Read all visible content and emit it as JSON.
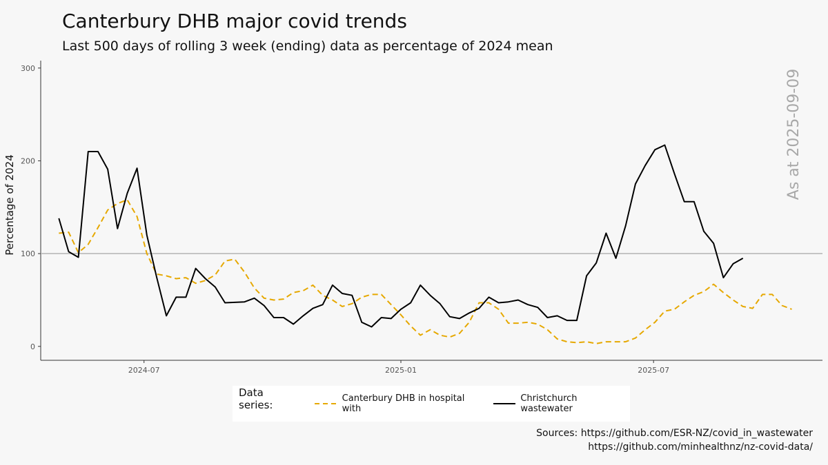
{
  "title": "Canterbury DHB major covid trends",
  "subtitle": "Last 500 days of rolling 3 week (ending) data as percentage of 2024 mean",
  "legend": {
    "title": "Data series:",
    "items": [
      "Canterbury DHB in hospital with",
      "Christchurch wastewater"
    ]
  },
  "sources": [
    "Sources: https://github.com/ESR-NZ/covid_in_wastewater",
    "https://github.com/minhealthnz/nz-covid-data/"
  ],
  "colors": {
    "hospital": "#e6a800",
    "wastewater": "#000000",
    "reference_line": "#b3b3b3",
    "annotation": "#a8a8a8"
  },
  "chart_data": {
    "type": "line",
    "ylabel": "Percentage of 2024",
    "xlabel": "",
    "ylim": [
      -15,
      308
    ],
    "xlim": [
      "2024-04-18",
      "2025-10-30"
    ],
    "yticks": [
      0,
      100,
      200,
      300
    ],
    "xticks": [
      "2024-07",
      "2025-01",
      "2025-07"
    ],
    "reference_line_y": 100,
    "annotation": "As at 2025-09-09",
    "grid": false,
    "legend_position": "bottom",
    "series": [
      {
        "name": "Canterbury DHB in hospital with",
        "style": "dashed",
        "color": "#e6a800",
        "points": [
          [
            "2024-05-01",
            122
          ],
          [
            "2024-05-08",
            123
          ],
          [
            "2024-05-15",
            101
          ],
          [
            "2024-05-22",
            110
          ],
          [
            "2024-05-29",
            128
          ],
          [
            "2024-06-05",
            147
          ],
          [
            "2024-06-12",
            154
          ],
          [
            "2024-06-19",
            158
          ],
          [
            "2024-06-26",
            140
          ],
          [
            "2024-07-03",
            100
          ],
          [
            "2024-07-10",
            78
          ],
          [
            "2024-07-17",
            76
          ],
          [
            "2024-07-24",
            73
          ],
          [
            "2024-07-31",
            74
          ],
          [
            "2024-08-07",
            68
          ],
          [
            "2024-08-14",
            71
          ],
          [
            "2024-08-21",
            77
          ],
          [
            "2024-08-28",
            92
          ],
          [
            "2024-09-04",
            94
          ],
          [
            "2024-09-11",
            80
          ],
          [
            "2024-09-18",
            63
          ],
          [
            "2024-09-25",
            52
          ],
          [
            "2024-10-02",
            50
          ],
          [
            "2024-10-09",
            51
          ],
          [
            "2024-10-16",
            58
          ],
          [
            "2024-10-23",
            60
          ],
          [
            "2024-10-30",
            66
          ],
          [
            "2024-11-06",
            55
          ],
          [
            "2024-11-13",
            50
          ],
          [
            "2024-11-20",
            43
          ],
          [
            "2024-11-27",
            46
          ],
          [
            "2024-12-04",
            53
          ],
          [
            "2024-12-11",
            56
          ],
          [
            "2024-12-18",
            56
          ],
          [
            "2024-12-25",
            45
          ],
          [
            "2025-01-01",
            34
          ],
          [
            "2025-01-08",
            22
          ],
          [
            "2025-01-15",
            12
          ],
          [
            "2025-01-22",
            18
          ],
          [
            "2025-01-29",
            12
          ],
          [
            "2025-02-05",
            10
          ],
          [
            "2025-02-12",
            14
          ],
          [
            "2025-02-19",
            26
          ],
          [
            "2025-02-26",
            47
          ],
          [
            "2025-03-05",
            47
          ],
          [
            "2025-03-12",
            40
          ],
          [
            "2025-03-19",
            25
          ],
          [
            "2025-03-26",
            25
          ],
          [
            "2025-04-02",
            26
          ],
          [
            "2025-04-09",
            24
          ],
          [
            "2025-04-16",
            18
          ],
          [
            "2025-04-23",
            8
          ],
          [
            "2025-04-30",
            5
          ],
          [
            "2025-05-07",
            4
          ],
          [
            "2025-05-14",
            5
          ],
          [
            "2025-05-21",
            3
          ],
          [
            "2025-05-28",
            5
          ],
          [
            "2025-06-04",
            5
          ],
          [
            "2025-06-11",
            5
          ],
          [
            "2025-06-18",
            9
          ],
          [
            "2025-06-25",
            18
          ],
          [
            "2025-07-02",
            26
          ],
          [
            "2025-07-09",
            38
          ],
          [
            "2025-07-16",
            40
          ],
          [
            "2025-07-23",
            48
          ],
          [
            "2025-07-30",
            55
          ],
          [
            "2025-08-06",
            59
          ],
          [
            "2025-08-13",
            67
          ],
          [
            "2025-08-20",
            58
          ],
          [
            "2025-08-27",
            50
          ],
          [
            "2025-09-03",
            43
          ],
          [
            "2025-09-10",
            41
          ],
          [
            "2025-09-17",
            56
          ],
          [
            "2025-09-24",
            56
          ],
          [
            "2025-10-01",
            44
          ],
          [
            "2025-10-08",
            40
          ]
        ]
      },
      {
        "name": "Christchurch wastewater",
        "style": "solid",
        "color": "#000000",
        "points": [
          [
            "2024-05-01",
            138
          ],
          [
            "2024-05-08",
            102
          ],
          [
            "2024-05-15",
            96
          ],
          [
            "2024-05-22",
            210
          ],
          [
            "2024-05-29",
            210
          ],
          [
            "2024-06-05",
            191
          ],
          [
            "2024-06-12",
            127
          ],
          [
            "2024-06-19",
            165
          ],
          [
            "2024-06-26",
            192
          ],
          [
            "2024-07-03",
            120
          ],
          [
            "2024-07-10",
            75
          ],
          [
            "2024-07-17",
            33
          ],
          [
            "2024-07-24",
            53
          ],
          [
            "2024-07-31",
            53
          ],
          [
            "2024-08-07",
            84
          ],
          [
            "2024-08-14",
            73
          ],
          [
            "2024-08-21",
            64
          ],
          [
            "2024-08-28",
            47
          ],
          [
            "2024-09-11",
            48
          ],
          [
            "2024-09-18",
            52
          ],
          [
            "2024-09-25",
            44
          ],
          [
            "2024-10-02",
            31
          ],
          [
            "2024-10-09",
            31
          ],
          [
            "2024-10-16",
            24
          ],
          [
            "2024-10-23",
            33
          ],
          [
            "2024-10-30",
            41
          ],
          [
            "2024-11-06",
            45
          ],
          [
            "2024-11-13",
            66
          ],
          [
            "2024-11-20",
            57
          ],
          [
            "2024-11-27",
            55
          ],
          [
            "2024-12-04",
            26
          ],
          [
            "2024-12-11",
            21
          ],
          [
            "2024-12-18",
            31
          ],
          [
            "2024-12-25",
            30
          ],
          [
            "2025-01-01",
            40
          ],
          [
            "2025-01-08",
            47
          ],
          [
            "2025-01-15",
            66
          ],
          [
            "2025-01-22",
            55
          ],
          [
            "2025-01-29",
            46
          ],
          [
            "2025-02-05",
            32
          ],
          [
            "2025-02-12",
            30
          ],
          [
            "2025-02-19",
            36
          ],
          [
            "2025-02-26",
            41
          ],
          [
            "2025-03-05",
            53
          ],
          [
            "2025-03-12",
            47
          ],
          [
            "2025-03-19",
            48
          ],
          [
            "2025-03-26",
            50
          ],
          [
            "2025-04-02",
            45
          ],
          [
            "2025-04-09",
            42
          ],
          [
            "2025-04-16",
            31
          ],
          [
            "2025-04-23",
            33
          ],
          [
            "2025-04-30",
            28
          ],
          [
            "2025-05-07",
            28
          ],
          [
            "2025-05-14",
            76
          ],
          [
            "2025-05-21",
            90
          ],
          [
            "2025-05-28",
            122
          ],
          [
            "2025-06-04",
            95
          ],
          [
            "2025-06-11",
            130
          ],
          [
            "2025-06-18",
            175
          ],
          [
            "2025-06-25",
            195
          ],
          [
            "2025-07-02",
            212
          ],
          [
            "2025-07-09",
            217
          ],
          [
            "2025-07-16",
            186
          ],
          [
            "2025-07-23",
            156
          ],
          [
            "2025-07-30",
            156
          ],
          [
            "2025-08-06",
            124
          ],
          [
            "2025-08-13",
            111
          ],
          [
            "2025-08-20",
            74
          ],
          [
            "2025-08-27",
            89
          ],
          [
            "2025-09-03",
            95
          ]
        ]
      }
    ]
  }
}
